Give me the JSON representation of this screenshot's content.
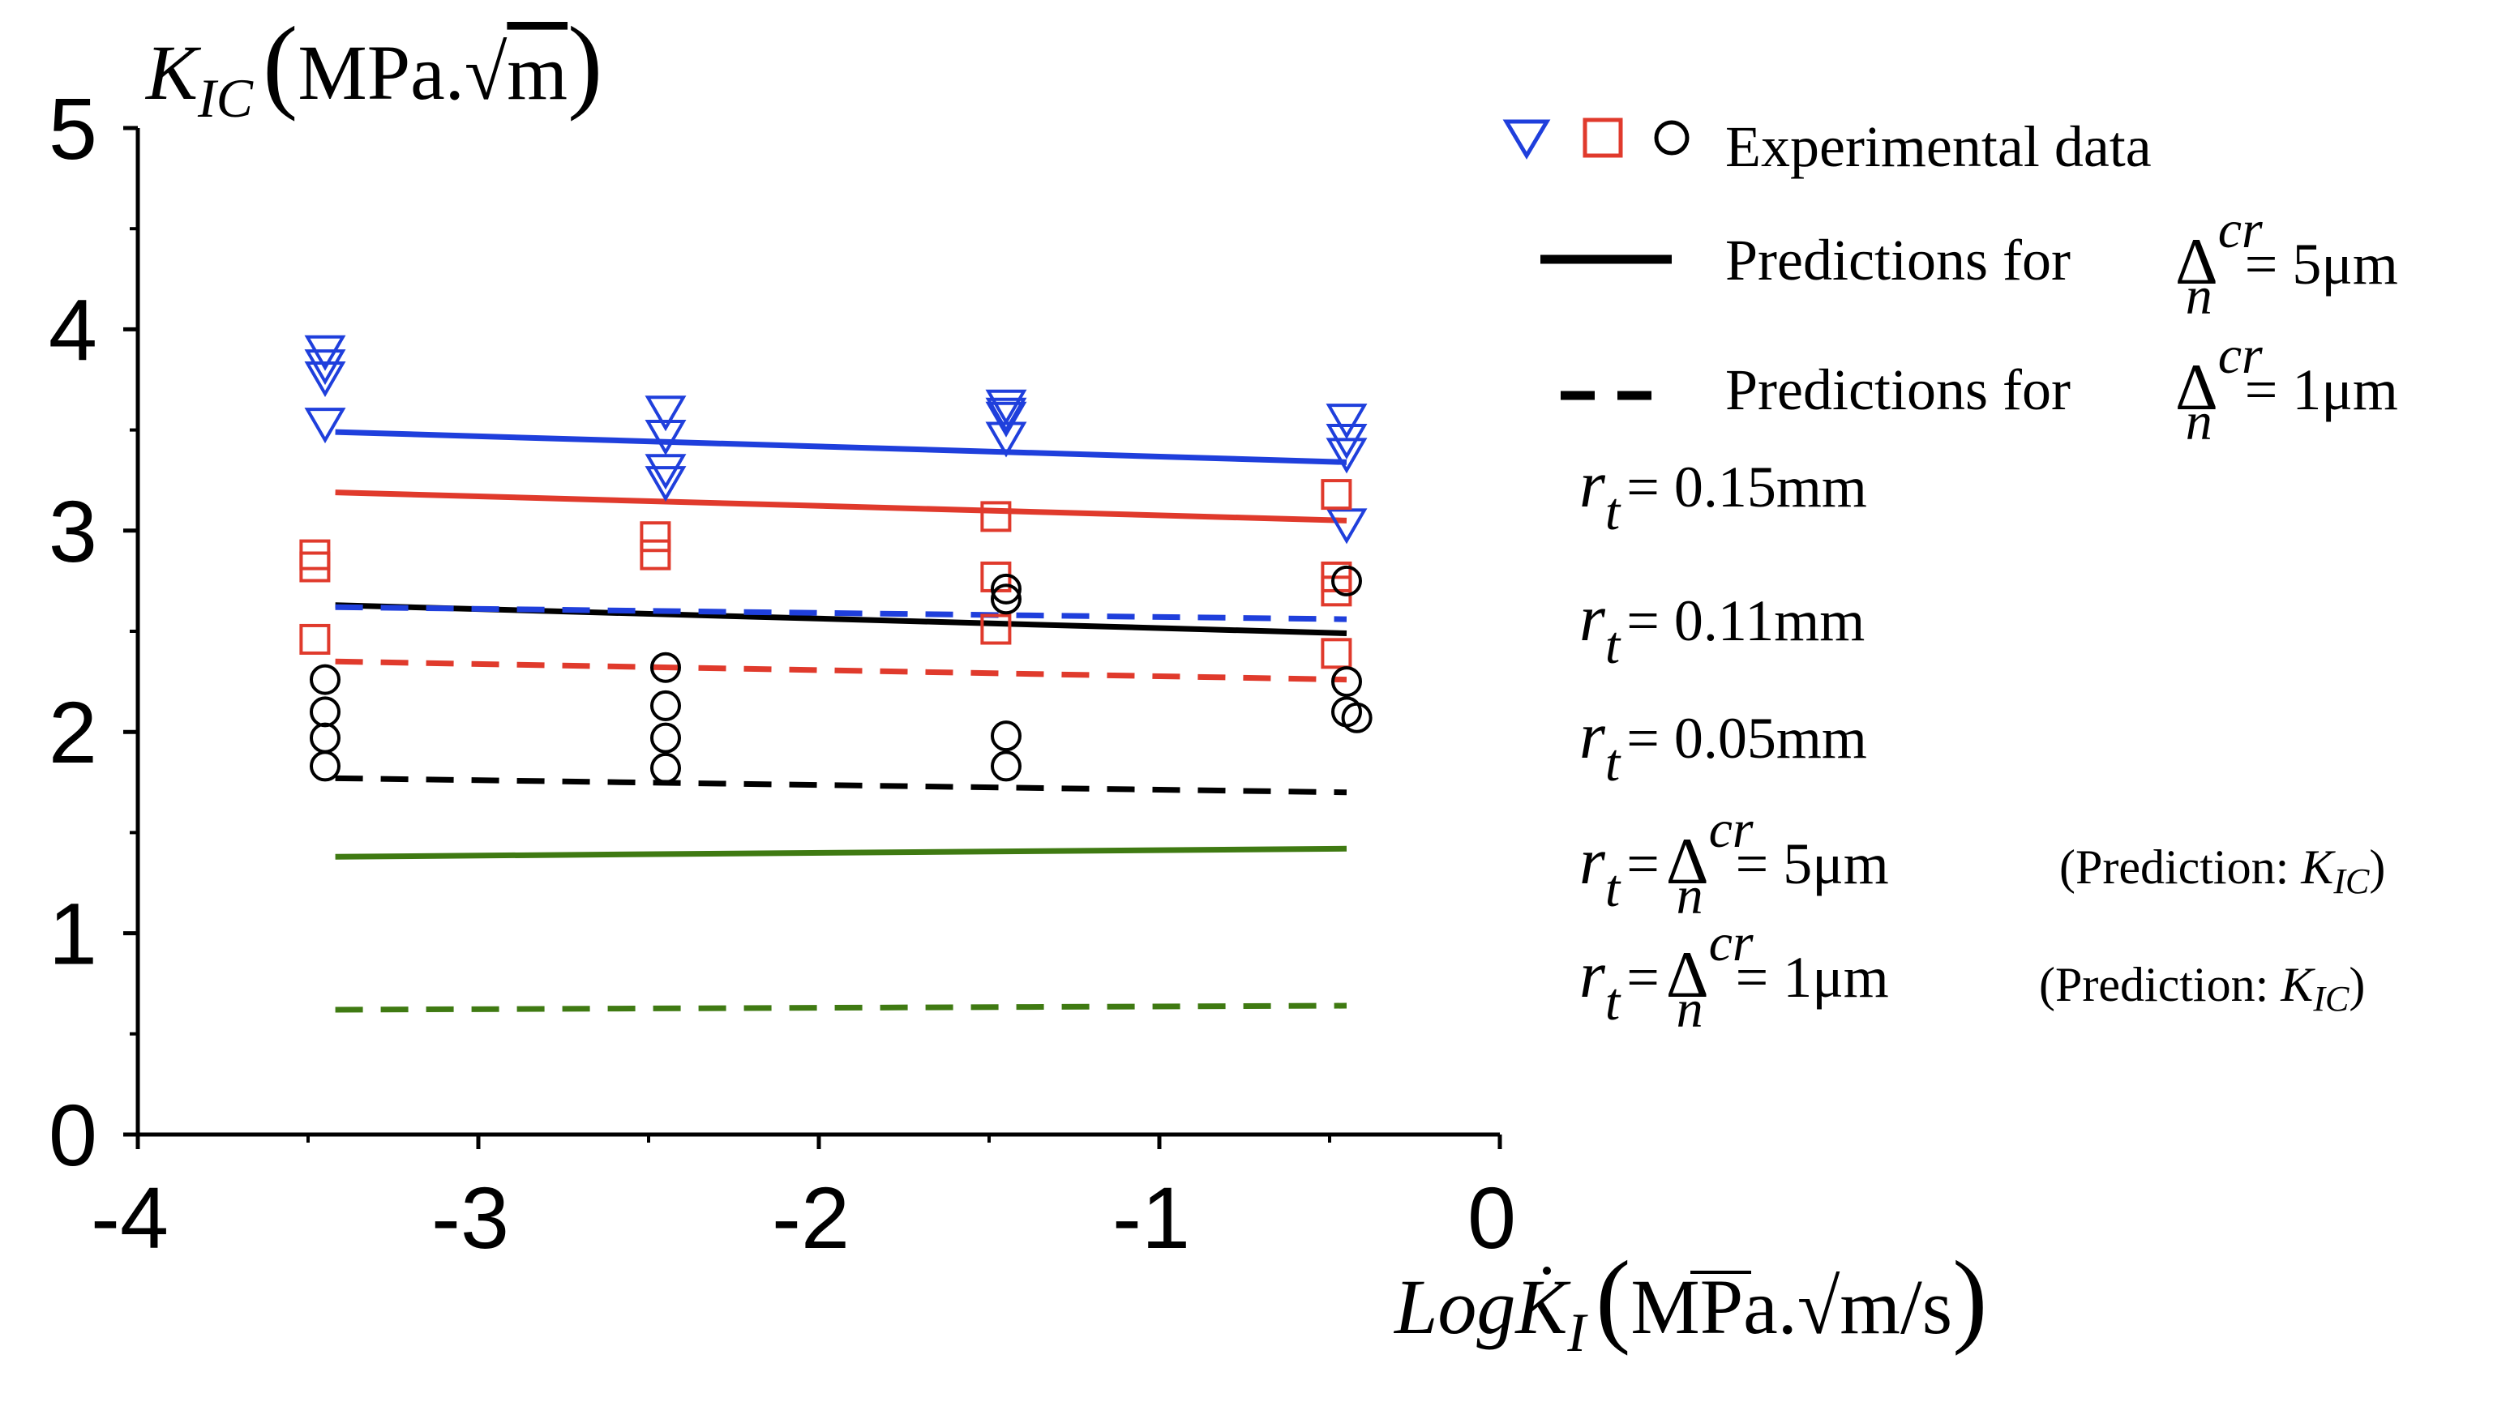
{
  "chart_data": {
    "type": "line",
    "x_axis": {
      "label_prefix": "Log",
      "label_var": "K",
      "label_sub": "I",
      "label_unit_pre": "MPa.",
      "label_unit_root": "m",
      "label_unit_post": "/s",
      "range": [
        -4,
        0
      ],
      "ticks": [
        "-4",
        "-3",
        "-2",
        "-1",
        "0"
      ]
    },
    "y_axis": {
      "label_var": "K",
      "label_sub": "IC",
      "label_unit_pre": "MPa.",
      "label_unit_root": "m",
      "range": [
        0,
        5
      ],
      "ticks": [
        "0",
        "1",
        "2",
        "3",
        "4",
        "5"
      ]
    },
    "colors": {
      "blue": "#1f3fdc",
      "red": "#e03a2c",
      "black": "#000000",
      "green": "#3f7a12"
    },
    "series": [
      {
        "name": "rt=0.15mm, Δ=5μm",
        "color": "blue",
        "dash": false,
        "x": [
          -3.42,
          -0.45
        ],
        "y": [
          3.49,
          3.34
        ]
      },
      {
        "name": "rt=0.11mm, Δ=5μm",
        "color": "red",
        "dash": false,
        "x": [
          -3.42,
          -0.45
        ],
        "y": [
          3.19,
          3.05
        ]
      },
      {
        "name": "rt=0.05mm, Δ=5μm",
        "color": "black",
        "dash": false,
        "x": [
          -3.42,
          -0.45
        ],
        "y": [
          2.63,
          2.49
        ]
      },
      {
        "name": "rt=Δ=5μm (KIC)",
        "color": "green",
        "dash": false,
        "x": [
          -3.42,
          -0.45
        ],
        "y": [
          1.38,
          1.42
        ]
      },
      {
        "name": "rt=0.15mm, Δ=1μm",
        "color": "blue",
        "dash": true,
        "x": [
          -3.42,
          -0.45
        ],
        "y": [
          2.62,
          2.56
        ]
      },
      {
        "name": "rt=0.11mm, Δ=1μm",
        "color": "red",
        "dash": true,
        "x": [
          -3.42,
          -0.45
        ],
        "y": [
          2.35,
          2.26
        ]
      },
      {
        "name": "rt=0.05mm, Δ=1μm",
        "color": "black",
        "dash": true,
        "x": [
          -3.42,
          -0.45
        ],
        "y": [
          1.77,
          1.7
        ]
      },
      {
        "name": "rt=Δ=1μm (KIC)",
        "color": "green",
        "dash": true,
        "x": [
          -3.42,
          -0.45
        ],
        "y": [
          0.62,
          0.64
        ]
      }
    ],
    "experimental": [
      {
        "name": "rt=0.15mm",
        "marker": "triangle-down",
        "color": "blue",
        "points": [
          [
            -3.45,
            3.89
          ],
          [
            -3.45,
            3.82
          ],
          [
            -3.45,
            3.76
          ],
          [
            -3.45,
            3.53
          ],
          [
            -2.45,
            3.59
          ],
          [
            -2.45,
            3.47
          ],
          [
            -2.45,
            3.3
          ],
          [
            -2.45,
            3.24
          ],
          [
            -1.45,
            3.62
          ],
          [
            -1.45,
            3.58
          ],
          [
            -1.45,
            3.56
          ],
          [
            -1.45,
            3.46
          ],
          [
            -0.45,
            3.55
          ],
          [
            -0.45,
            3.45
          ],
          [
            -0.45,
            3.38
          ],
          [
            -0.45,
            3.03
          ]
        ]
      },
      {
        "name": "rt=0.11mm",
        "marker": "square",
        "color": "red",
        "points": [
          [
            -3.48,
            2.88
          ],
          [
            -3.48,
            2.82
          ],
          [
            -3.48,
            2.46
          ],
          [
            -2.48,
            2.97
          ],
          [
            -2.48,
            2.88
          ],
          [
            -1.48,
            3.07
          ],
          [
            -1.48,
            2.77
          ],
          [
            -1.48,
            2.51
          ],
          [
            -0.48,
            3.18
          ],
          [
            -0.48,
            2.77
          ],
          [
            -0.48,
            2.7
          ],
          [
            -0.48,
            2.39
          ]
        ]
      },
      {
        "name": "rt=0.05mm",
        "marker": "circle",
        "color": "black",
        "points": [
          [
            -3.45,
            2.26
          ],
          [
            -3.45,
            2.1
          ],
          [
            -3.45,
            1.97
          ],
          [
            -3.45,
            1.83
          ],
          [
            -2.45,
            2.32
          ],
          [
            -2.45,
            2.13
          ],
          [
            -2.45,
            1.97
          ],
          [
            -2.45,
            1.82
          ],
          [
            -1.45,
            2.71
          ],
          [
            -1.45,
            2.66
          ],
          [
            -1.45,
            1.98
          ],
          [
            -1.45,
            1.83
          ],
          [
            -0.45,
            2.75
          ],
          [
            -0.45,
            2.25
          ],
          [
            -0.45,
            2.1
          ],
          [
            -0.42,
            2.07
          ]
        ]
      }
    ],
    "legend": {
      "experimental": "Experimental data",
      "pred5": "Predictions for",
      "pred1": "Predictions for",
      "delta_sym": "Δ",
      "delta_sup": "cr",
      "delta_sub": "n",
      "val5": "= 5μm",
      "val1": "= 1μm",
      "rt_var": "r",
      "rt_sub": "t",
      "rt015": "= 0.15mm",
      "rt011": "= 0.11mm",
      "rt005": "= 0.05mm",
      "rtd5": "= 5μm",
      "rtd1": "= 1μm",
      "eq": "=",
      "pred_note_pre": "(Prediction: ",
      "pred_note_var": "K",
      "pred_note_sub": "IC",
      "pred_note_post": ")"
    }
  }
}
